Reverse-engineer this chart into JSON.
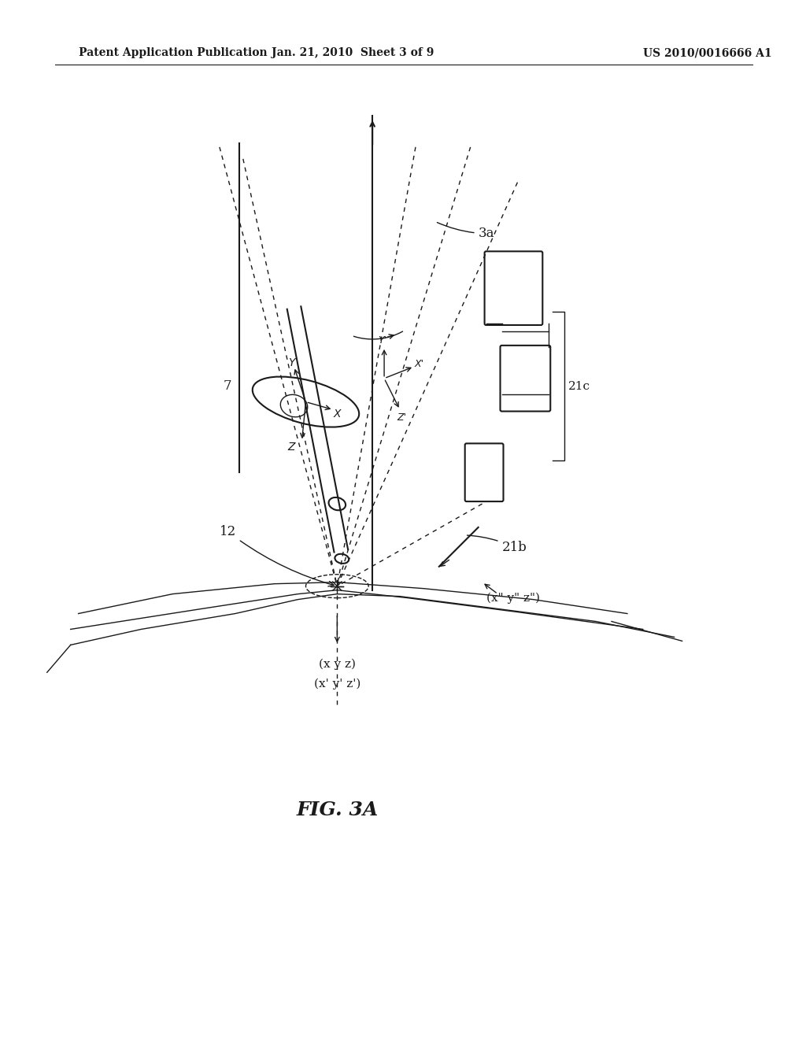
{
  "background_color": "#ffffff",
  "header_left": "Patent Application Publication",
  "header_center": "Jan. 21, 2010  Sheet 3 of 9",
  "header_right": "US 2010/0016666 A1",
  "figure_label": "FIG. 3A",
  "label_3a": "3a",
  "label_7": "7",
  "label_12": "12",
  "label_21b": "21b",
  "label_21c": "21c",
  "label_xyz": "(x y z)",
  "label_xpypzp": "(x' y' z')",
  "label_xppyppzpp": "(x\" y\" z\")"
}
